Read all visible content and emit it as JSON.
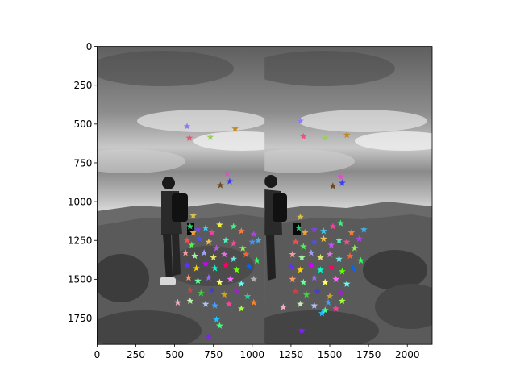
{
  "chart_data": {
    "type": "scatter",
    "title": "",
    "xlabel": "",
    "ylabel": "",
    "xlim": [
      0,
      2160
    ],
    "ylim": [
      1920,
      0
    ],
    "y_inverted": true,
    "grid": false,
    "legend": "none",
    "background": "side-by-side grayscale photo pair of a hiker on a hilltop under cloudy sky; panel split at x=1080",
    "x_ticks": [
      0,
      250,
      500,
      750,
      1000,
      1250,
      1500,
      1750,
      2000
    ],
    "x_tick_labels": [
      "0",
      "250",
      "500",
      "750",
      "1000",
      "1250",
      "1500",
      "1750",
      "2000"
    ],
    "y_ticks": [
      0,
      250,
      500,
      750,
      1000,
      1250,
      1500,
      1750
    ],
    "y_tick_labels": [
      "0",
      "250",
      "500",
      "750",
      "1000",
      "1250",
      "1500",
      "1750"
    ],
    "marker": "star",
    "points": [
      {
        "x": 580,
        "y": 515,
        "color": "#8a7df0"
      },
      {
        "x": 595,
        "y": 590,
        "color": "#f04f78"
      },
      {
        "x": 730,
        "y": 585,
        "color": "#9ad05a"
      },
      {
        "x": 890,
        "y": 530,
        "color": "#c08a20"
      },
      {
        "x": 840,
        "y": 820,
        "color": "#e050c8"
      },
      {
        "x": 855,
        "y": 870,
        "color": "#3b3bf0"
      },
      {
        "x": 795,
        "y": 895,
        "color": "#6b4a1e"
      },
      {
        "x": 620,
        "y": 1090,
        "color": "#d6c24a"
      },
      {
        "x": 600,
        "y": 1160,
        "color": "#2bd06a"
      },
      {
        "x": 620,
        "y": 1200,
        "color": "#f0a040"
      },
      {
        "x": 650,
        "y": 1180,
        "color": "#8040f0"
      },
      {
        "x": 700,
        "y": 1170,
        "color": "#40c8f0"
      },
      {
        "x": 740,
        "y": 1200,
        "color": "#f040a0"
      },
      {
        "x": 790,
        "y": 1150,
        "color": "#f0f040"
      },
      {
        "x": 880,
        "y": 1160,
        "color": "#40f080"
      },
      {
        "x": 930,
        "y": 1190,
        "color": "#f08040"
      },
      {
        "x": 1010,
        "y": 1210,
        "color": "#b040f0"
      },
      {
        "x": 1040,
        "y": 1250,
        "color": "#40b0f0"
      },
      {
        "x": 580,
        "y": 1250,
        "color": "#f05050"
      },
      {
        "x": 610,
        "y": 1280,
        "color": "#50f050"
      },
      {
        "x": 660,
        "y": 1240,
        "color": "#5050f0"
      },
      {
        "x": 720,
        "y": 1260,
        "color": "#f0c050"
      },
      {
        "x": 770,
        "y": 1300,
        "color": "#c050f0"
      },
      {
        "x": 830,
        "y": 1250,
        "color": "#50f0c0"
      },
      {
        "x": 880,
        "y": 1270,
        "color": "#f05090"
      },
      {
        "x": 940,
        "y": 1300,
        "color": "#90f050"
      },
      {
        "x": 1000,
        "y": 1260,
        "color": "#5090f0"
      },
      {
        "x": 570,
        "y": 1330,
        "color": "#f0a0a0"
      },
      {
        "x": 630,
        "y": 1350,
        "color": "#a0f0a0"
      },
      {
        "x": 690,
        "y": 1330,
        "color": "#a0a0f0"
      },
      {
        "x": 750,
        "y": 1360,
        "color": "#e0e070"
      },
      {
        "x": 820,
        "y": 1340,
        "color": "#e070e0"
      },
      {
        "x": 880,
        "y": 1370,
        "color": "#70e0e0"
      },
      {
        "x": 960,
        "y": 1340,
        "color": "#ff6030"
      },
      {
        "x": 1030,
        "y": 1380,
        "color": "#30ff60"
      },
      {
        "x": 580,
        "y": 1410,
        "color": "#6030ff"
      },
      {
        "x": 640,
        "y": 1430,
        "color": "#ffcc00"
      },
      {
        "x": 700,
        "y": 1400,
        "color": "#cc00ff"
      },
      {
        "x": 760,
        "y": 1430,
        "color": "#00ffcc"
      },
      {
        "x": 830,
        "y": 1410,
        "color": "#ff0066"
      },
      {
        "x": 900,
        "y": 1440,
        "color": "#66ff00"
      },
      {
        "x": 980,
        "y": 1420,
        "color": "#0066ff"
      },
      {
        "x": 590,
        "y": 1490,
        "color": "#ff9966"
      },
      {
        "x": 650,
        "y": 1510,
        "color": "#66ff99"
      },
      {
        "x": 720,
        "y": 1490,
        "color": "#9966ff"
      },
      {
        "x": 790,
        "y": 1520,
        "color": "#ffff66"
      },
      {
        "x": 860,
        "y": 1500,
        "color": "#ff66ff"
      },
      {
        "x": 930,
        "y": 1530,
        "color": "#66ffff"
      },
      {
        "x": 1010,
        "y": 1500,
        "color": "#b0b0b0"
      },
      {
        "x": 600,
        "y": 1570,
        "color": "#d04040"
      },
      {
        "x": 670,
        "y": 1590,
        "color": "#40d040"
      },
      {
        "x": 740,
        "y": 1570,
        "color": "#4040d0"
      },
      {
        "x": 820,
        "y": 1600,
        "color": "#d0a020"
      },
      {
        "x": 900,
        "y": 1580,
        "color": "#a020d0"
      },
      {
        "x": 970,
        "y": 1610,
        "color": "#20d0a0"
      },
      {
        "x": 520,
        "y": 1650,
        "color": "#f0b0c0"
      },
      {
        "x": 600,
        "y": 1640,
        "color": "#c0f0b0"
      },
      {
        "x": 700,
        "y": 1660,
        "color": "#b0c0f0"
      },
      {
        "x": 760,
        "y": 1670,
        "color": "#40a0ff"
      },
      {
        "x": 850,
        "y": 1660,
        "color": "#ff40a0"
      },
      {
        "x": 930,
        "y": 1690,
        "color": "#a0ff40"
      },
      {
        "x": 1010,
        "y": 1650,
        "color": "#ff8020"
      },
      {
        "x": 770,
        "y": 1760,
        "color": "#20c0ff"
      },
      {
        "x": 790,
        "y": 1800,
        "color": "#40ff80"
      },
      {
        "x": 720,
        "y": 1870,
        "color": "#8020ff"
      },
      {
        "x": 1310,
        "y": 480,
        "color": "#8a7df0"
      },
      {
        "x": 1330,
        "y": 580,
        "color": "#f04f78"
      },
      {
        "x": 1470,
        "y": 590,
        "color": "#9ad05a"
      },
      {
        "x": 1610,
        "y": 570,
        "color": "#c08a20"
      },
      {
        "x": 1570,
        "y": 840,
        "color": "#e050c8"
      },
      {
        "x": 1580,
        "y": 880,
        "color": "#3b3bf0"
      },
      {
        "x": 1520,
        "y": 900,
        "color": "#6b4a1e"
      },
      {
        "x": 1310,
        "y": 1100,
        "color": "#d6c24a"
      },
      {
        "x": 1300,
        "y": 1170,
        "color": "#2bd06a"
      },
      {
        "x": 1340,
        "y": 1200,
        "color": "#f0a040"
      },
      {
        "x": 1400,
        "y": 1180,
        "color": "#8040f0"
      },
      {
        "x": 1460,
        "y": 1190,
        "color": "#40c8f0"
      },
      {
        "x": 1520,
        "y": 1160,
        "color": "#f040a0"
      },
      {
        "x": 1570,
        "y": 1140,
        "color": "#40f080"
      },
      {
        "x": 1640,
        "y": 1200,
        "color": "#f08040"
      },
      {
        "x": 1690,
        "y": 1240,
        "color": "#b040f0"
      },
      {
        "x": 1720,
        "y": 1180,
        "color": "#40b0f0"
      },
      {
        "x": 1280,
        "y": 1260,
        "color": "#f05050"
      },
      {
        "x": 1330,
        "y": 1290,
        "color": "#50f050"
      },
      {
        "x": 1400,
        "y": 1260,
        "color": "#5050f0"
      },
      {
        "x": 1460,
        "y": 1240,
        "color": "#f0c050"
      },
      {
        "x": 1510,
        "y": 1280,
        "color": "#c050f0"
      },
      {
        "x": 1560,
        "y": 1250,
        "color": "#50f0c0"
      },
      {
        "x": 1610,
        "y": 1260,
        "color": "#f05090"
      },
      {
        "x": 1660,
        "y": 1300,
        "color": "#90f050"
      },
      {
        "x": 1260,
        "y": 1340,
        "color": "#f0a0a0"
      },
      {
        "x": 1320,
        "y": 1360,
        "color": "#a0f0a0"
      },
      {
        "x": 1380,
        "y": 1330,
        "color": "#a0a0f0"
      },
      {
        "x": 1440,
        "y": 1360,
        "color": "#e0e070"
      },
      {
        "x": 1500,
        "y": 1340,
        "color": "#e070e0"
      },
      {
        "x": 1560,
        "y": 1370,
        "color": "#70e0e0"
      },
      {
        "x": 1630,
        "y": 1350,
        "color": "#ff6030"
      },
      {
        "x": 1700,
        "y": 1380,
        "color": "#30ff60"
      },
      {
        "x": 1250,
        "y": 1420,
        "color": "#6030ff"
      },
      {
        "x": 1310,
        "y": 1440,
        "color": "#ffcc00"
      },
      {
        "x": 1380,
        "y": 1410,
        "color": "#cc00ff"
      },
      {
        "x": 1440,
        "y": 1440,
        "color": "#00ffcc"
      },
      {
        "x": 1510,
        "y": 1420,
        "color": "#ff0066"
      },
      {
        "x": 1580,
        "y": 1450,
        "color": "#66ff00"
      },
      {
        "x": 1650,
        "y": 1430,
        "color": "#0066ff"
      },
      {
        "x": 1260,
        "y": 1500,
        "color": "#ff9966"
      },
      {
        "x": 1330,
        "y": 1520,
        "color": "#66ff99"
      },
      {
        "x": 1400,
        "y": 1490,
        "color": "#9966ff"
      },
      {
        "x": 1470,
        "y": 1520,
        "color": "#ffff66"
      },
      {
        "x": 1540,
        "y": 1500,
        "color": "#ff66ff"
      },
      {
        "x": 1610,
        "y": 1530,
        "color": "#66ffff"
      },
      {
        "x": 1280,
        "y": 1580,
        "color": "#d04040"
      },
      {
        "x": 1350,
        "y": 1600,
        "color": "#40d040"
      },
      {
        "x": 1420,
        "y": 1580,
        "color": "#4040d0"
      },
      {
        "x": 1500,
        "y": 1610,
        "color": "#d0a020"
      },
      {
        "x": 1570,
        "y": 1590,
        "color": "#a020d0"
      },
      {
        "x": 1200,
        "y": 1680,
        "color": "#f0b0c0"
      },
      {
        "x": 1310,
        "y": 1660,
        "color": "#c0f0b0"
      },
      {
        "x": 1400,
        "y": 1670,
        "color": "#b0c0f0"
      },
      {
        "x": 1490,
        "y": 1650,
        "color": "#40a0ff"
      },
      {
        "x": 1540,
        "y": 1690,
        "color": "#ff40a0"
      },
      {
        "x": 1580,
        "y": 1640,
        "color": "#a0ff40"
      },
      {
        "x": 1450,
        "y": 1720,
        "color": "#20c0ff"
      },
      {
        "x": 1470,
        "y": 1700,
        "color": "#40ff80"
      },
      {
        "x": 1320,
        "y": 1830,
        "color": "#8020ff"
      }
    ]
  }
}
